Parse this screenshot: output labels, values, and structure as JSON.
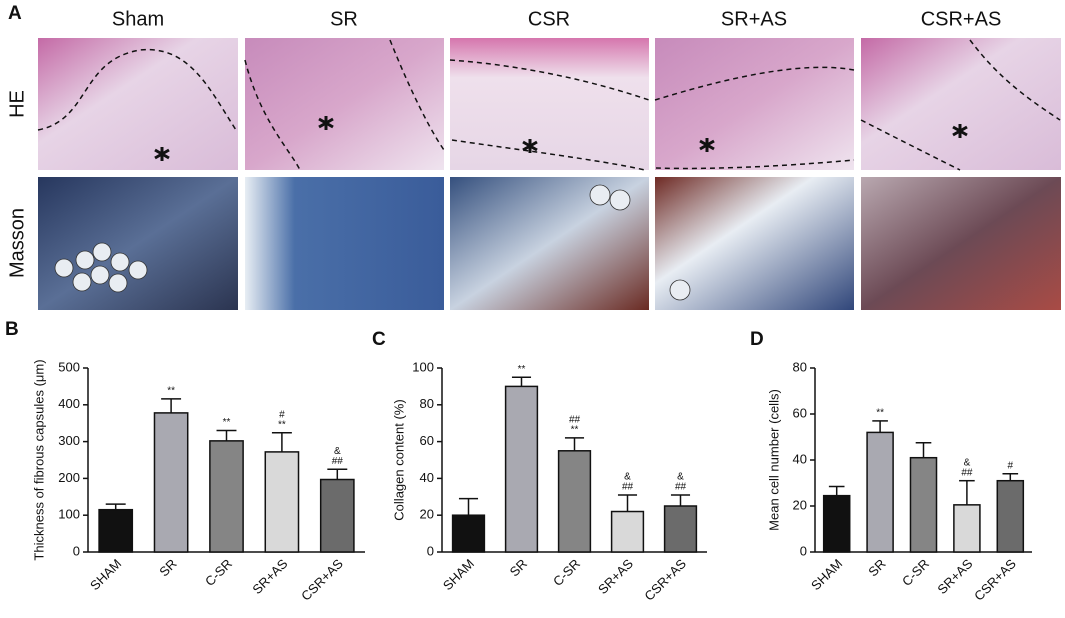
{
  "figure": {
    "panel_labels": [
      "A",
      "B",
      "C",
      "D"
    ],
    "column_labels": [
      "Sham",
      "SR",
      "CSR",
      "SR+AS",
      "CSR+AS"
    ],
    "row_labels": [
      "HE",
      "Masson"
    ]
  },
  "chart_data": [
    {
      "type": "bar",
      "ylabel": "Thickness of fibrous capsules (μm)",
      "categories": [
        "SHAM",
        "SR",
        "C-SR",
        "SR+AS",
        "CSR+AS"
      ],
      "values": [
        115,
        378,
        302,
        272,
        197
      ],
      "errors": [
        15,
        38,
        28,
        52,
        28
      ],
      "colors": [
        "#111111",
        "#a9a9b1",
        "#858585",
        "#d9d9d9",
        "#6b6b6b"
      ],
      "annotations": [
        [],
        [
          "**"
        ],
        [
          "**"
        ],
        [
          "#",
          "**"
        ],
        [
          "&",
          "##"
        ]
      ],
      "ylim": [
        0,
        500
      ],
      "yticks": [
        0,
        100,
        200,
        300,
        400,
        500
      ]
    },
    {
      "type": "bar",
      "ylabel": "Collagen content (%)",
      "categories": [
        "SHAM",
        "SR",
        "C-SR",
        "SR+AS",
        "CSR+AS"
      ],
      "values": [
        20,
        90,
        55,
        22,
        25
      ],
      "errors": [
        9,
        5,
        7,
        9,
        6
      ],
      "colors": [
        "#111111",
        "#a9a9b1",
        "#858585",
        "#d9d9d9",
        "#6b6b6b"
      ],
      "annotations": [
        [],
        [
          "**"
        ],
        [
          "##",
          "**"
        ],
        [
          "&",
          "##"
        ],
        [
          "&",
          "##"
        ]
      ],
      "ylim": [
        0,
        100
      ],
      "yticks": [
        0,
        20,
        40,
        60,
        80,
        100
      ]
    },
    {
      "type": "bar",
      "ylabel": "Mean cell number (cells)",
      "categories": [
        "SHAM",
        "SR",
        "C-SR",
        "SR+AS",
        "CSR+AS"
      ],
      "values": [
        24.5,
        52,
        41,
        20.5,
        31
      ],
      "errors": [
        4,
        5,
        6.5,
        10.5,
        3
      ],
      "colors": [
        "#111111",
        "#a9a9b1",
        "#858585",
        "#d9d9d9",
        "#6b6b6b"
      ],
      "annotations": [
        [],
        [
          "**"
        ],
        [],
        [
          "&",
          "##"
        ],
        [
          "#"
        ]
      ],
      "ylim": [
        0,
        80
      ],
      "yticks": [
        0,
        20,
        40,
        60,
        80
      ]
    }
  ]
}
